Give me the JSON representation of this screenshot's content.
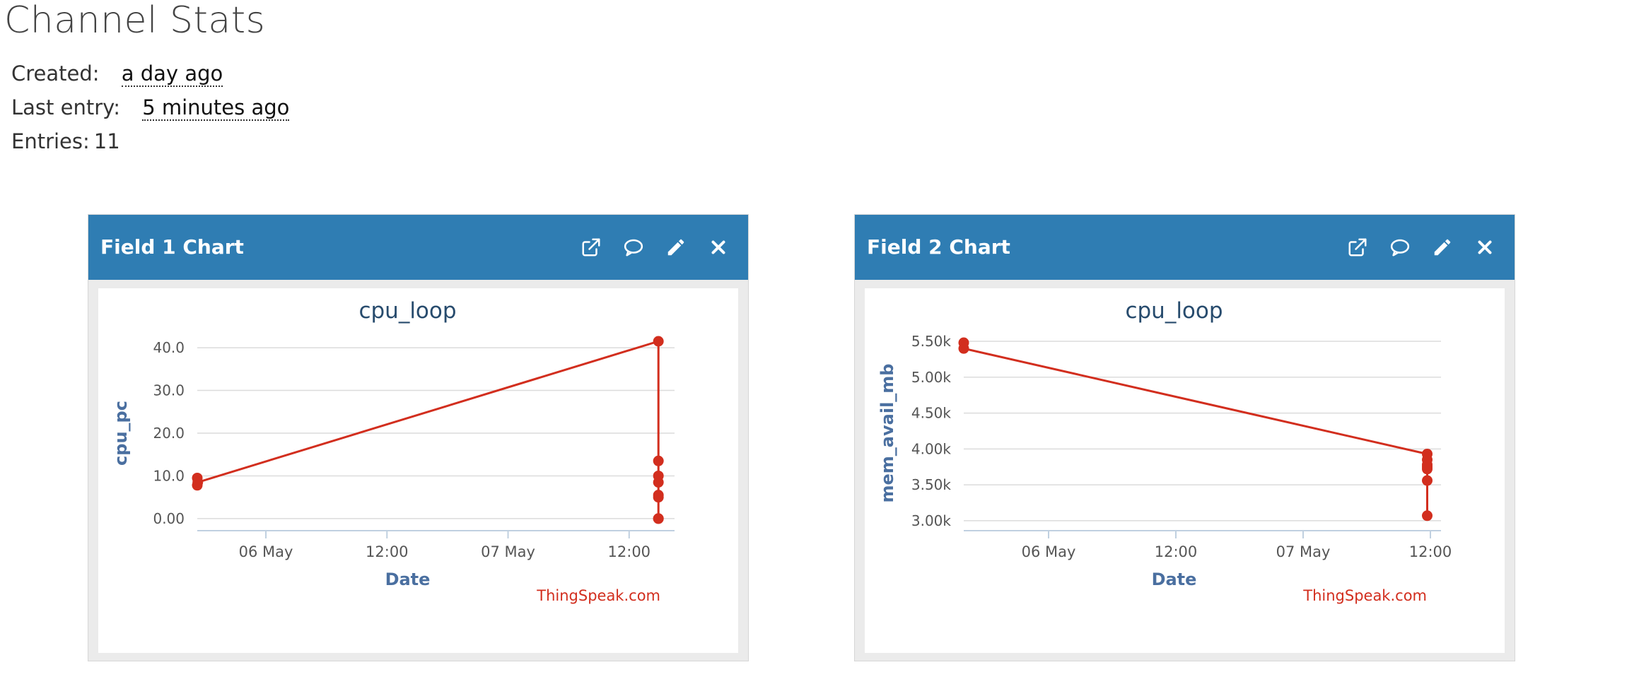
{
  "page": {
    "title": "Channel Stats"
  },
  "stats": {
    "created_label": "Created:",
    "created_value": "a day ago",
    "last_entry_label": "Last entry:",
    "last_entry_value": "5 minutes ago",
    "entries_label": "Entries:",
    "entries_value": "11"
  },
  "colors": {
    "header_bg": "#2f7db3",
    "series": "#d22e1e",
    "axis_title": "#4a6fa0",
    "chart_title": "#274b6d"
  },
  "panels": [
    {
      "title": "Field 1 Chart",
      "actions": [
        "external-link-icon",
        "comment-icon",
        "pencil-icon",
        "close-icon"
      ]
    },
    {
      "title": "Field 2 Chart",
      "actions": [
        "external-link-icon",
        "comment-icon",
        "pencil-icon",
        "close-icon"
      ]
    }
  ],
  "chart_data": [
    {
      "type": "line",
      "title": "cpu_loop",
      "xlabel": "Date",
      "ylabel": "cpu_pc",
      "credits": "ThingSpeak.com",
      "x_ticks": [
        "06 May",
        "12:00",
        "07 May",
        "12:00"
      ],
      "x_tick_hours": [
        24,
        36,
        48,
        60
      ],
      "xlim_hours": [
        17.2,
        64.5
      ],
      "y_ticks": [
        "0.00",
        "10.0",
        "20.0",
        "30.0",
        "40.0"
      ],
      "y_tick_values": [
        0,
        10,
        20,
        30,
        40
      ],
      "ylim": [
        -1.5,
        41.5
      ],
      "grid": true,
      "series": [
        {
          "x_hours": [
            17.2,
            17.2,
            17.25,
            62.9,
            62.9,
            62.9,
            62.9,
            62.9,
            62.9,
            62.9,
            62.9
          ],
          "values": [
            7.8,
            9.5,
            8.5,
            41.5,
            13.5,
            10.0,
            8.5,
            5.5,
            5.0,
            0.0,
            0.0
          ]
        }
      ]
    },
    {
      "type": "line",
      "title": "cpu_loop",
      "xlabel": "Date",
      "ylabel": "mem_avail_mb",
      "credits": "ThingSpeak.com",
      "x_ticks": [
        "06 May",
        "12:00",
        "07 May",
        "12:00"
      ],
      "x_tick_hours": [
        24,
        36,
        48,
        60
      ],
      "xlim_hours": [
        16.0,
        61.0
      ],
      "y_ticks": [
        "3.00k",
        "3.50k",
        "4.00k",
        "4.50k",
        "5.00k",
        "5.50k"
      ],
      "y_tick_values": [
        3000,
        3500,
        4000,
        4500,
        5000,
        5500
      ],
      "ylim": [
        2940,
        5500
      ],
      "grid": true,
      "series": [
        {
          "x_hours": [
            16.0,
            16.0,
            59.7,
            59.7,
            59.7,
            59.7,
            59.7,
            59.7,
            59.7
          ],
          "values": [
            5400,
            5480,
            3930,
            3850,
            3780,
            3750,
            3720,
            3560,
            3070
          ],
          "line_order": [
            1,
            0,
            2,
            3,
            4,
            5,
            6,
            7,
            8
          ]
        }
      ]
    }
  ]
}
